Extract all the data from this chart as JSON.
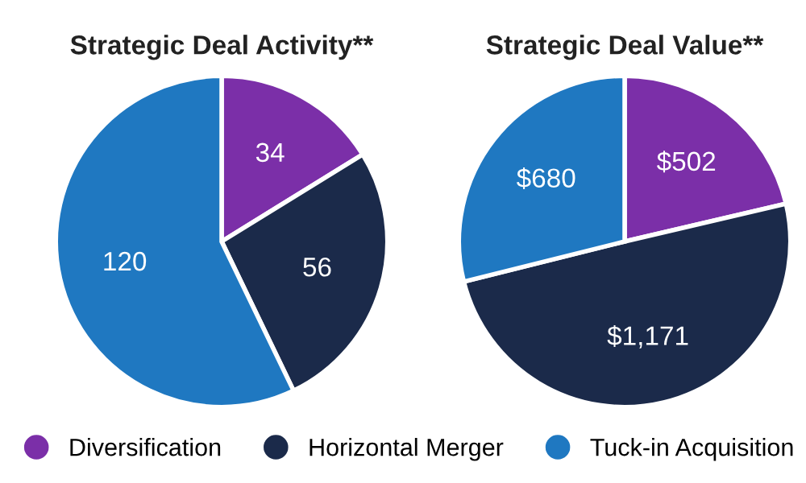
{
  "chart_data": [
    {
      "type": "pie",
      "title": "Strategic Deal Activity**",
      "categories": [
        "Diversification",
        "Horizontal Merger",
        "Tuck-in Acquisition"
      ],
      "values": [
        34,
        56,
        120
      ],
      "colors": [
        "#7b2fa8",
        "#1b2a4a",
        "#1f78c1"
      ],
      "data_labels": true,
      "legend": "bottom"
    },
    {
      "type": "pie",
      "title": "Strategic Deal Value**",
      "categories": [
        null,
        null,
        null
      ],
      "values": [
        502,
        1171,
        680
      ],
      "value_labels": [
        "$502",
        "$1,171",
        "$680"
      ],
      "colors": [
        "#7b2fa8",
        "#1b2a4a",
        "#1f78c1"
      ]
    }
  ]
}
